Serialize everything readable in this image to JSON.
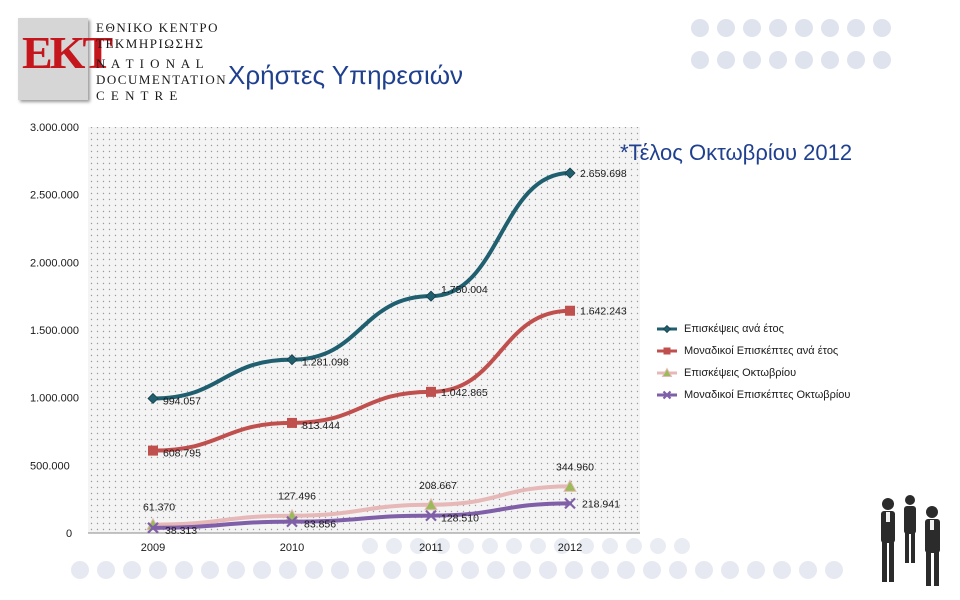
{
  "header": {
    "logo_mark": "EKT",
    "logo_lines": [
      "ΕΘΝΙΚΟ ΚΕΝΤΡΟ",
      "ΤΕΚΜΗΡΙΩΣΗΣ",
      "N A T I O N A L",
      "DOCUMENTATION",
      "C E N T R E"
    ],
    "title": "Χρήστες Υπηρεσιών"
  },
  "note": "*Τέλος Οκτωβρίου 2012",
  "chart_data": {
    "type": "line",
    "title": "Χρήστες Υπηρεσιών",
    "categories": [
      "2009",
      "2010",
      "2011",
      "2012"
    ],
    "ylim": [
      0,
      3000000
    ],
    "yticks": [
      0,
      500000,
      1000000,
      1500000,
      2000000,
      2500000,
      3000000
    ],
    "ytick_labels": [
      "0",
      "500.000",
      "1.000.000",
      "1.500.000",
      "2.000.000",
      "2.500.000",
      "3.000.000"
    ],
    "series": [
      {
        "name": "Επισκέψεις ανά έτος",
        "color": "#1f5f6f",
        "marker": "diamond",
        "values": [
          994057,
          1281098,
          1750004,
          2659698
        ],
        "labels": [
          "994.057",
          "1.281.098",
          "1.750.004",
          "2.659.698"
        ]
      },
      {
        "name": "Μοναδικοί Επισκέπτες ανά έτος",
        "color": "#c0504d",
        "marker": "square",
        "values": [
          608795,
          813444,
          1042865,
          1642243
        ],
        "labels": [
          "608.795",
          "813.444",
          "1.042.865",
          "1.642.243"
        ]
      },
      {
        "name": "Επισκέψεις Οκτωβρίου",
        "color": "#e6b9b8",
        "marker": "triangle",
        "values": [
          61370,
          127496,
          208667,
          344960
        ],
        "labels": [
          "61.370",
          "127.496",
          "208.667",
          "344.960"
        ]
      },
      {
        "name": "Μοναδικοί Επισκέπτες Οκτωβρίου",
        "color": "#7f5fa8",
        "marker": "x",
        "values": [
          38313,
          83856,
          128510,
          218941
        ],
        "labels": [
          "38.313",
          "83.856",
          "128.510",
          "218.941"
        ]
      }
    ]
  }
}
